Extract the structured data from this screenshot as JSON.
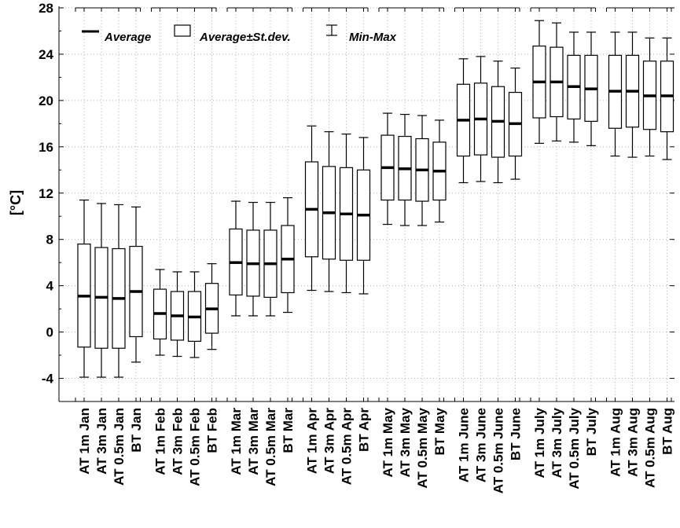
{
  "chart_data": {
    "type": "boxplot",
    "ylabel": "[°C]",
    "ylim": [
      -6,
      28
    ],
    "yticks": [
      -4,
      0,
      4,
      8,
      12,
      16,
      20,
      24,
      28
    ],
    "grid": true,
    "legend_position": "top-left",
    "legend": {
      "average": "Average",
      "stdev": "Average±St.dev.",
      "minmax": "Min-Max"
    },
    "groups": [
      {
        "month": "Jan",
        "boxes": [
          {
            "label": "AT 1m Jan",
            "min": -3.9,
            "max": 11.4,
            "mean": 3.1,
            "lo": -1.3,
            "hi": 7.6
          },
          {
            "label": "AT 3m Jan",
            "min": -3.9,
            "max": 11.1,
            "mean": 3.0,
            "lo": -1.4,
            "hi": 7.3
          },
          {
            "label": "AT 0.5m Jan",
            "min": -3.9,
            "max": 11.0,
            "mean": 2.9,
            "lo": -1.4,
            "hi": 7.2
          },
          {
            "label": "BT Jan",
            "min": -2.6,
            "max": 10.8,
            "mean": 3.5,
            "lo": -0.4,
            "hi": 7.4
          }
        ]
      },
      {
        "month": "Feb",
        "boxes": [
          {
            "label": "AT 1m Feb",
            "min": -2.0,
            "max": 5.4,
            "mean": 1.6,
            "lo": -0.6,
            "hi": 3.7
          },
          {
            "label": "AT 3m Feb",
            "min": -2.1,
            "max": 5.2,
            "mean": 1.4,
            "lo": -0.7,
            "hi": 3.5
          },
          {
            "label": "AT 0.5m Feb",
            "min": -2.2,
            "max": 5.2,
            "mean": 1.3,
            "lo": -0.8,
            "hi": 3.5
          },
          {
            "label": "BT Feb",
            "min": -1.5,
            "max": 5.9,
            "mean": 2.0,
            "lo": -0.1,
            "hi": 4.2
          }
        ]
      },
      {
        "month": "Mar",
        "boxes": [
          {
            "label": "AT 1m Mar",
            "min": 1.4,
            "max": 11.3,
            "mean": 6.0,
            "lo": 3.2,
            "hi": 8.9
          },
          {
            "label": "AT 3m Mar",
            "min": 1.4,
            "max": 11.2,
            "mean": 5.9,
            "lo": 3.1,
            "hi": 8.8
          },
          {
            "label": "AT 0.5m Mar",
            "min": 1.4,
            "max": 11.2,
            "mean": 5.9,
            "lo": 3.0,
            "hi": 8.8
          },
          {
            "label": "BT Mar",
            "min": 1.7,
            "max": 11.6,
            "mean": 6.3,
            "lo": 3.4,
            "hi": 9.2
          }
        ]
      },
      {
        "month": "Apr",
        "boxes": [
          {
            "label": "AT 1m Apr",
            "min": 3.6,
            "max": 17.8,
            "mean": 10.6,
            "lo": 6.5,
            "hi": 14.7
          },
          {
            "label": "AT 3m Apr",
            "min": 3.5,
            "max": 17.3,
            "mean": 10.3,
            "lo": 6.3,
            "hi": 14.3
          },
          {
            "label": "AT 0.5m Apr",
            "min": 3.4,
            "max": 17.1,
            "mean": 10.2,
            "lo": 6.2,
            "hi": 14.2
          },
          {
            "label": "BT Apr",
            "min": 3.3,
            "max": 16.8,
            "mean": 10.1,
            "lo": 6.2,
            "hi": 14.0
          }
        ]
      },
      {
        "month": "May",
        "boxes": [
          {
            "label": "AT 1m May",
            "min": 9.3,
            "max": 18.9,
            "mean": 14.2,
            "lo": 11.4,
            "hi": 17.0
          },
          {
            "label": "AT 3m May",
            "min": 9.2,
            "max": 18.8,
            "mean": 14.1,
            "lo": 11.4,
            "hi": 16.9
          },
          {
            "label": "AT 0.5m May",
            "min": 9.2,
            "max": 18.7,
            "mean": 14.0,
            "lo": 11.3,
            "hi": 16.7
          },
          {
            "label": "BT May",
            "min": 9.5,
            "max": 18.3,
            "mean": 13.9,
            "lo": 11.4,
            "hi": 16.4
          }
        ]
      },
      {
        "month": "June",
        "boxes": [
          {
            "label": "AT 1m June",
            "min": 12.9,
            "max": 23.6,
            "mean": 18.3,
            "lo": 15.2,
            "hi": 21.4
          },
          {
            "label": "AT 3m June",
            "min": 13.0,
            "max": 23.8,
            "mean": 18.4,
            "lo": 15.3,
            "hi": 21.5
          },
          {
            "label": "AT 0.5m June",
            "min": 12.9,
            "max": 23.4,
            "mean": 18.2,
            "lo": 15.1,
            "hi": 21.2
          },
          {
            "label": "BT June",
            "min": 13.2,
            "max": 22.8,
            "mean": 18.0,
            "lo": 15.2,
            "hi": 20.7
          }
        ]
      },
      {
        "month": "July",
        "boxes": [
          {
            "label": "AT 1m July",
            "min": 16.3,
            "max": 26.9,
            "mean": 21.6,
            "lo": 18.5,
            "hi": 24.7
          },
          {
            "label": "AT 3m July",
            "min": 16.5,
            "max": 26.7,
            "mean": 21.6,
            "lo": 18.6,
            "hi": 24.6
          },
          {
            "label": "AT 0.5m July",
            "min": 16.4,
            "max": 25.9,
            "mean": 21.2,
            "lo": 18.4,
            "hi": 23.9
          },
          {
            "label": "BT July",
            "min": 16.1,
            "max": 25.9,
            "mean": 21.0,
            "lo": 18.2,
            "hi": 23.9
          }
        ]
      },
      {
        "month": "Aug",
        "boxes": [
          {
            "label": "AT 1m Aug",
            "min": 15.2,
            "max": 25.9,
            "mean": 20.8,
            "lo": 17.6,
            "hi": 23.9
          },
          {
            "label": "AT 3m Aug",
            "min": 15.1,
            "max": 25.9,
            "mean": 20.8,
            "lo": 17.7,
            "hi": 23.9
          },
          {
            "label": "AT 0.5m Aug",
            "min": 15.2,
            "max": 25.4,
            "mean": 20.4,
            "lo": 17.5,
            "hi": 23.4
          },
          {
            "label": "BT Aug",
            "min": 14.9,
            "max": 25.4,
            "mean": 20.4,
            "lo": 17.3,
            "hi": 23.4
          }
        ]
      }
    ]
  }
}
